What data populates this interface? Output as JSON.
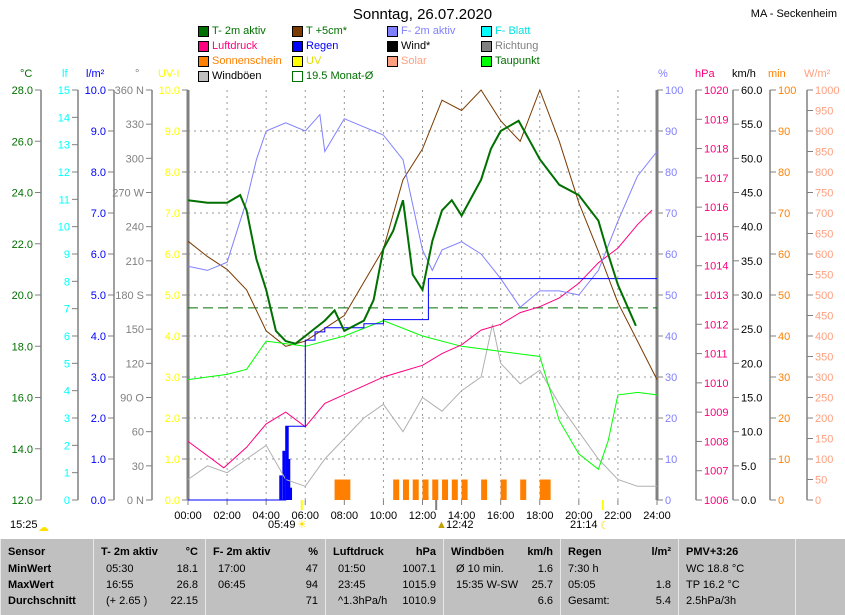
{
  "header": {
    "title": "Sonntag, 26.07.2020",
    "station": "MA - Seckenheim"
  },
  "legend": [
    {
      "label": "T- 2m aktiv",
      "color": "#007000",
      "text_color": "#007000"
    },
    {
      "label": "T +5cm*",
      "color": "#7a3a00",
      "text_color": "#007000"
    },
    {
      "label": "F- 2m aktiv",
      "color": "#8080ff",
      "text_color": "#8080ff"
    },
    {
      "label": "F- Blatt",
      "color": "#00ffff",
      "text_color": "#00e0e0"
    },
    {
      "label": "Luftdruck",
      "color": "#ff0080",
      "text_color": "#ff0080"
    },
    {
      "label": "Regen",
      "color": "#0000ff",
      "text_color": "#0000ff"
    },
    {
      "label": "Wind*",
      "color": "#000000",
      "text_color": "#000000"
    },
    {
      "label": "Richtung",
      "color": "#808080",
      "text_color": "#808080"
    },
    {
      "label": "Sonnenschein",
      "color": "#ff8000",
      "text_color": "#ff8000"
    },
    {
      "label": "UV",
      "color": "#ffff00",
      "text_color": "#e0e000"
    },
    {
      "label": "Solar",
      "color": "#ffa080",
      "text_color": "#ffa080"
    },
    {
      "label": "Taupunkt",
      "color": "#00ff00",
      "text_color": "#007000"
    },
    {
      "label": "Windböen",
      "color": "#c0c0c0",
      "text_color": "#000000"
    },
    {
      "label": "19.5 Monat-Ø",
      "color": "none",
      "text_color": "#007000"
    }
  ],
  "chart_data": {
    "type": "line",
    "title": "Sonntag, 26.07.2020",
    "xlabel": "",
    "xlim": [
      0,
      24
    ],
    "x_ticks": [
      "00:00",
      "02:00",
      "04:00",
      "06:00",
      "08:00",
      "10:00",
      "12:00",
      "14:00",
      "16:00",
      "18:00",
      "20:00",
      "22:00",
      "24:00"
    ],
    "grid": true,
    "axes": [
      {
        "unit": "°C",
        "color": "#007000",
        "range": [
          12,
          28
        ],
        "labels": [
          "12.0",
          "14.0",
          "16.0",
          "18.0",
          "20.0",
          "22.0",
          "24.0",
          "26.0",
          "28.0"
        ]
      },
      {
        "unit": "lf",
        "color": "#00ffff",
        "range": [
          0,
          15
        ],
        "labels": [
          "0",
          "1",
          "2",
          "3",
          "4",
          "5",
          "6",
          "7",
          "8",
          "9",
          "10",
          "11",
          "12",
          "13",
          "14",
          "15"
        ]
      },
      {
        "unit": "l/m²",
        "color": "#0000ff",
        "range": [
          0,
          10
        ],
        "labels": [
          "0.0",
          "1.0",
          "2.0",
          "3.0",
          "4.0",
          "5.0",
          "6.0",
          "7.0",
          "8.0",
          "9.0",
          "10.0"
        ]
      },
      {
        "unit": "°",
        "color": "#808080",
        "range": [
          0,
          360
        ],
        "labels": [
          "0   N",
          "30",
          "60",
          "90  O",
          "120",
          "150",
          "180 S",
          "210",
          "240",
          "270 W",
          "300",
          "330",
          "360 N"
        ]
      },
      {
        "unit": "UV-I",
        "color": "#ffff00",
        "range": [
          0,
          10
        ],
        "labels": [
          "0.0",
          "1.0",
          "2.0",
          "3.0",
          "4.0",
          "5.0",
          "6.0",
          "7.0",
          "8.0",
          "9.0",
          "10.0"
        ]
      },
      {
        "unit": "%",
        "color": "#8080ff",
        "range": [
          0,
          100
        ],
        "labels": [
          "0",
          "10",
          "20",
          "30",
          "40",
          "50",
          "60",
          "70",
          "80",
          "90",
          "100"
        ]
      },
      {
        "unit": "hPa",
        "color": "#ff0080",
        "range": [
          1006,
          1020
        ],
        "labels": [
          "1006",
          "1007",
          "1008",
          "1009",
          "1010",
          "1011",
          "1012",
          "1013",
          "1014",
          "1015",
          "1016",
          "1017",
          "1018",
          "1019",
          "1020"
        ]
      },
      {
        "unit": "km/h",
        "color": "#000000",
        "range": [
          0,
          60
        ],
        "labels": [
          "0.0",
          "5.0",
          "10.0",
          "15.0",
          "20.0",
          "25.0",
          "30.0",
          "35.0",
          "40.0",
          "45.0",
          "50.0",
          "55.0",
          "60.0"
        ]
      },
      {
        "unit": "min",
        "color": "#ff8000",
        "range": [
          0,
          100
        ],
        "labels": [
          "0",
          "10",
          "20",
          "30",
          "40",
          "50",
          "60",
          "70",
          "80",
          "90",
          "100"
        ]
      },
      {
        "unit": "W/m²",
        "color": "#ffa080",
        "range": [
          0,
          1000
        ],
        "labels": [
          "0",
          "50",
          "100",
          "150",
          "200",
          "250",
          "300",
          "350",
          "400",
          "450",
          "500",
          "550",
          "600",
          "650",
          "700",
          "750",
          "800",
          "850",
          "900",
          "950",
          "1000"
        ]
      }
    ],
    "series": [
      {
        "name": "T- 2m aktiv",
        "axis": 0,
        "color": "#007000",
        "width": 2,
        "x": [
          0,
          1,
          2,
          2.67,
          3,
          3.5,
          4,
          4.5,
          5,
          5.5,
          6,
          7,
          7.5,
          8,
          9,
          9.5,
          10,
          10.5,
          11,
          11.5,
          12,
          12.5,
          13,
          13.5,
          14,
          15,
          15.5,
          16,
          16.92,
          17.5,
          18,
          19,
          20,
          21,
          21.5,
          22,
          22.92
        ],
        "y": [
          23.7,
          23.6,
          23.6,
          23.9,
          23.3,
          21.4,
          20.2,
          18.6,
          18.2,
          18.1,
          18.4,
          19.0,
          19.4,
          18.6,
          19.0,
          19.8,
          21.8,
          22.5,
          23.7,
          20.8,
          20.2,
          22.1,
          23.3,
          23.7,
          23.1,
          24.5,
          25.7,
          26.4,
          26.8,
          26.0,
          25.3,
          24.3,
          23.9,
          22.9,
          21.6,
          20.4,
          18.8
        ]
      },
      {
        "name": "F- 2m aktiv",
        "axis": 5,
        "color": "#8080ff",
        "width": 1,
        "x": [
          0,
          1,
          2,
          3,
          3.5,
          4,
          5,
          6,
          6.75,
          7,
          8,
          9,
          10,
          11,
          12,
          12.5,
          13,
          14,
          15,
          16,
          17,
          18,
          19,
          20,
          21,
          22,
          23,
          24
        ],
        "y": [
          57,
          56,
          58,
          73,
          83,
          90,
          92,
          90,
          94,
          85,
          93,
          91,
          89,
          83,
          61,
          56,
          61,
          63,
          60,
          54,
          47,
          51,
          51,
          50,
          56,
          68,
          79,
          85
        ]
      },
      {
        "name": "Luftdruck",
        "axis": 6,
        "color": "#ff0080",
        "width": 1,
        "x": [
          0,
          1.83,
          3,
          4,
          5,
          6,
          7,
          8,
          9,
          10,
          11,
          12,
          13,
          14,
          15,
          16,
          17,
          18,
          19,
          20,
          21,
          22,
          23,
          23.75
        ],
        "y": [
          1008.0,
          1007.1,
          1007.8,
          1008.6,
          1009.0,
          1008.5,
          1009.3,
          1009.6,
          1009.9,
          1010.2,
          1010.4,
          1010.6,
          1011.0,
          1011.3,
          1011.8,
          1012.0,
          1012.4,
          1012.6,
          1012.9,
          1013.4,
          1014.1,
          1014.6,
          1015.4,
          1015.9
        ]
      },
      {
        "name": "Taupunkt",
        "axis": 0,
        "color": "#00ff00",
        "width": 1,
        "x": [
          0,
          2,
          3,
          4,
          6,
          8,
          10,
          12,
          14,
          16,
          18,
          19,
          20,
          21,
          21.5,
          22,
          23,
          24
        ],
        "y": [
          16.7,
          16.9,
          17.1,
          18.2,
          18.0,
          18.4,
          19.0,
          18.4,
          18.0,
          17.8,
          17.6,
          15.1,
          13.8,
          13.2,
          14.3,
          16.1,
          16.2,
          16.1
        ]
      },
      {
        "name": "T +5cm*",
        "axis": 0,
        "color": "#7a3a00",
        "width": 1,
        "x": [
          0,
          1,
          2,
          3,
          4,
          5,
          6,
          8,
          10,
          11,
          12,
          13,
          14,
          15,
          16,
          17,
          18,
          19,
          20,
          21,
          22,
          23,
          24
        ],
        "y": [
          22.1,
          21.5,
          21.0,
          20.2,
          18.6,
          18.0,
          18.2,
          19.2,
          21.8,
          24.5,
          25.7,
          27.6,
          27.2,
          28.0,
          26.8,
          26.0,
          28.0,
          26.0,
          23.6,
          21.7,
          19.7,
          18.2,
          16.7
        ]
      },
      {
        "name": "Windböen",
        "axis": 7,
        "color": "#b0b0b0",
        "width": 1,
        "x": [
          0,
          1,
          2,
          3,
          4,
          5,
          6,
          7,
          8,
          9,
          10,
          11,
          12,
          13,
          14,
          15,
          15.58,
          16,
          17,
          18,
          19,
          20,
          21,
          22,
          23,
          24
        ],
        "y": [
          3,
          5,
          4,
          6,
          8,
          3,
          2,
          6,
          9,
          12,
          14,
          10,
          15,
          13,
          16,
          18,
          25.7,
          20,
          17,
          19,
          14,
          10,
          6,
          3,
          2,
          2
        ]
      },
      {
        "name": "Regen",
        "axis": 2,
        "color": "#0000ff",
        "width": 1,
        "x": [
          0,
          4.5,
          5,
          6,
          6.5,
          7,
          9,
          10,
          11,
          12.1,
          12.3,
          24
        ],
        "y": [
          0,
          0,
          1.8,
          3.9,
          4.1,
          4.2,
          4.3,
          4.4,
          4.4,
          4.4,
          5.4,
          5.4
        ]
      }
    ],
    "reference_lines": [
      {
        "name": "19.5 Monat-Ø",
        "axis": 0,
        "value": 19.5,
        "color": "#007000"
      }
    ],
    "rain_bars": {
      "axis": 2,
      "x": [
        4.67,
        4.83,
        5.0,
        5.08,
        5.17
      ],
      "y": [
        0.6,
        1.2,
        1.8,
        1.0,
        0.3
      ]
    },
    "sunshine_bars": {
      "axis": 8,
      "x": [
        7.5,
        7.75,
        8.0,
        10.5,
        11.0,
        11.5,
        12.0,
        12.5,
        13.0,
        13.5,
        14.0,
        15.0,
        16.0,
        17.0,
        18.0,
        18.25
      ],
      "y": [
        5,
        5,
        5,
        5,
        5,
        5,
        5,
        5,
        5,
        5,
        5,
        5,
        5,
        5,
        5,
        5
      ]
    }
  },
  "sun": {
    "now": "15:25",
    "sunrise": "05:49",
    "noon": "12:42",
    "sunset": "21:14"
  },
  "table": {
    "columns": [
      {
        "h1": "Sensor",
        "h2": "",
        "rows": [
          [
            "MinWert",
            ""
          ],
          [
            "MaxWert",
            ""
          ],
          [
            "Durchschnitt",
            ""
          ]
        ]
      },
      {
        "h1": "T- 2m aktiv",
        "h2": "°C",
        "rows": [
          [
            "05:30",
            "18.1"
          ],
          [
            "16:55",
            "26.8"
          ],
          [
            "(+ 2.65 )",
            "22.15"
          ]
        ]
      },
      {
        "h1": "F- 2m aktiv",
        "h2": "%",
        "rows": [
          [
            "17:00",
            "47"
          ],
          [
            "06:45",
            "94"
          ],
          [
            "",
            "71"
          ]
        ]
      },
      {
        "h1": "Luftdruck",
        "h2": "hPa",
        "rows": [
          [
            "01:50",
            "1007.1"
          ],
          [
            "23:45",
            "1015.9"
          ],
          [
            "^1.3hPa/h",
            "1010.9"
          ]
        ]
      },
      {
        "h1": "Windböen",
        "h2": "km/h",
        "rows": [
          [
            "Ø 10 min.",
            "1.6"
          ],
          [
            "15:35  W-SW",
            "25.7"
          ],
          [
            "",
            "6.6"
          ]
        ]
      },
      {
        "h1": "Regen",
        "h2": "l/m²",
        "rows": [
          [
            "7:30 h",
            ""
          ],
          [
            "05:05",
            "1.8"
          ],
          [
            "Gesamt:",
            "5.4"
          ]
        ]
      },
      {
        "h1": "PMV+3:26",
        "h2": "",
        "rows": [
          [
            "WC 18.8 °C",
            ""
          ],
          [
            "TP 16.2 °C",
            ""
          ],
          [
            "2.5hPa/3h",
            ""
          ]
        ]
      }
    ]
  }
}
